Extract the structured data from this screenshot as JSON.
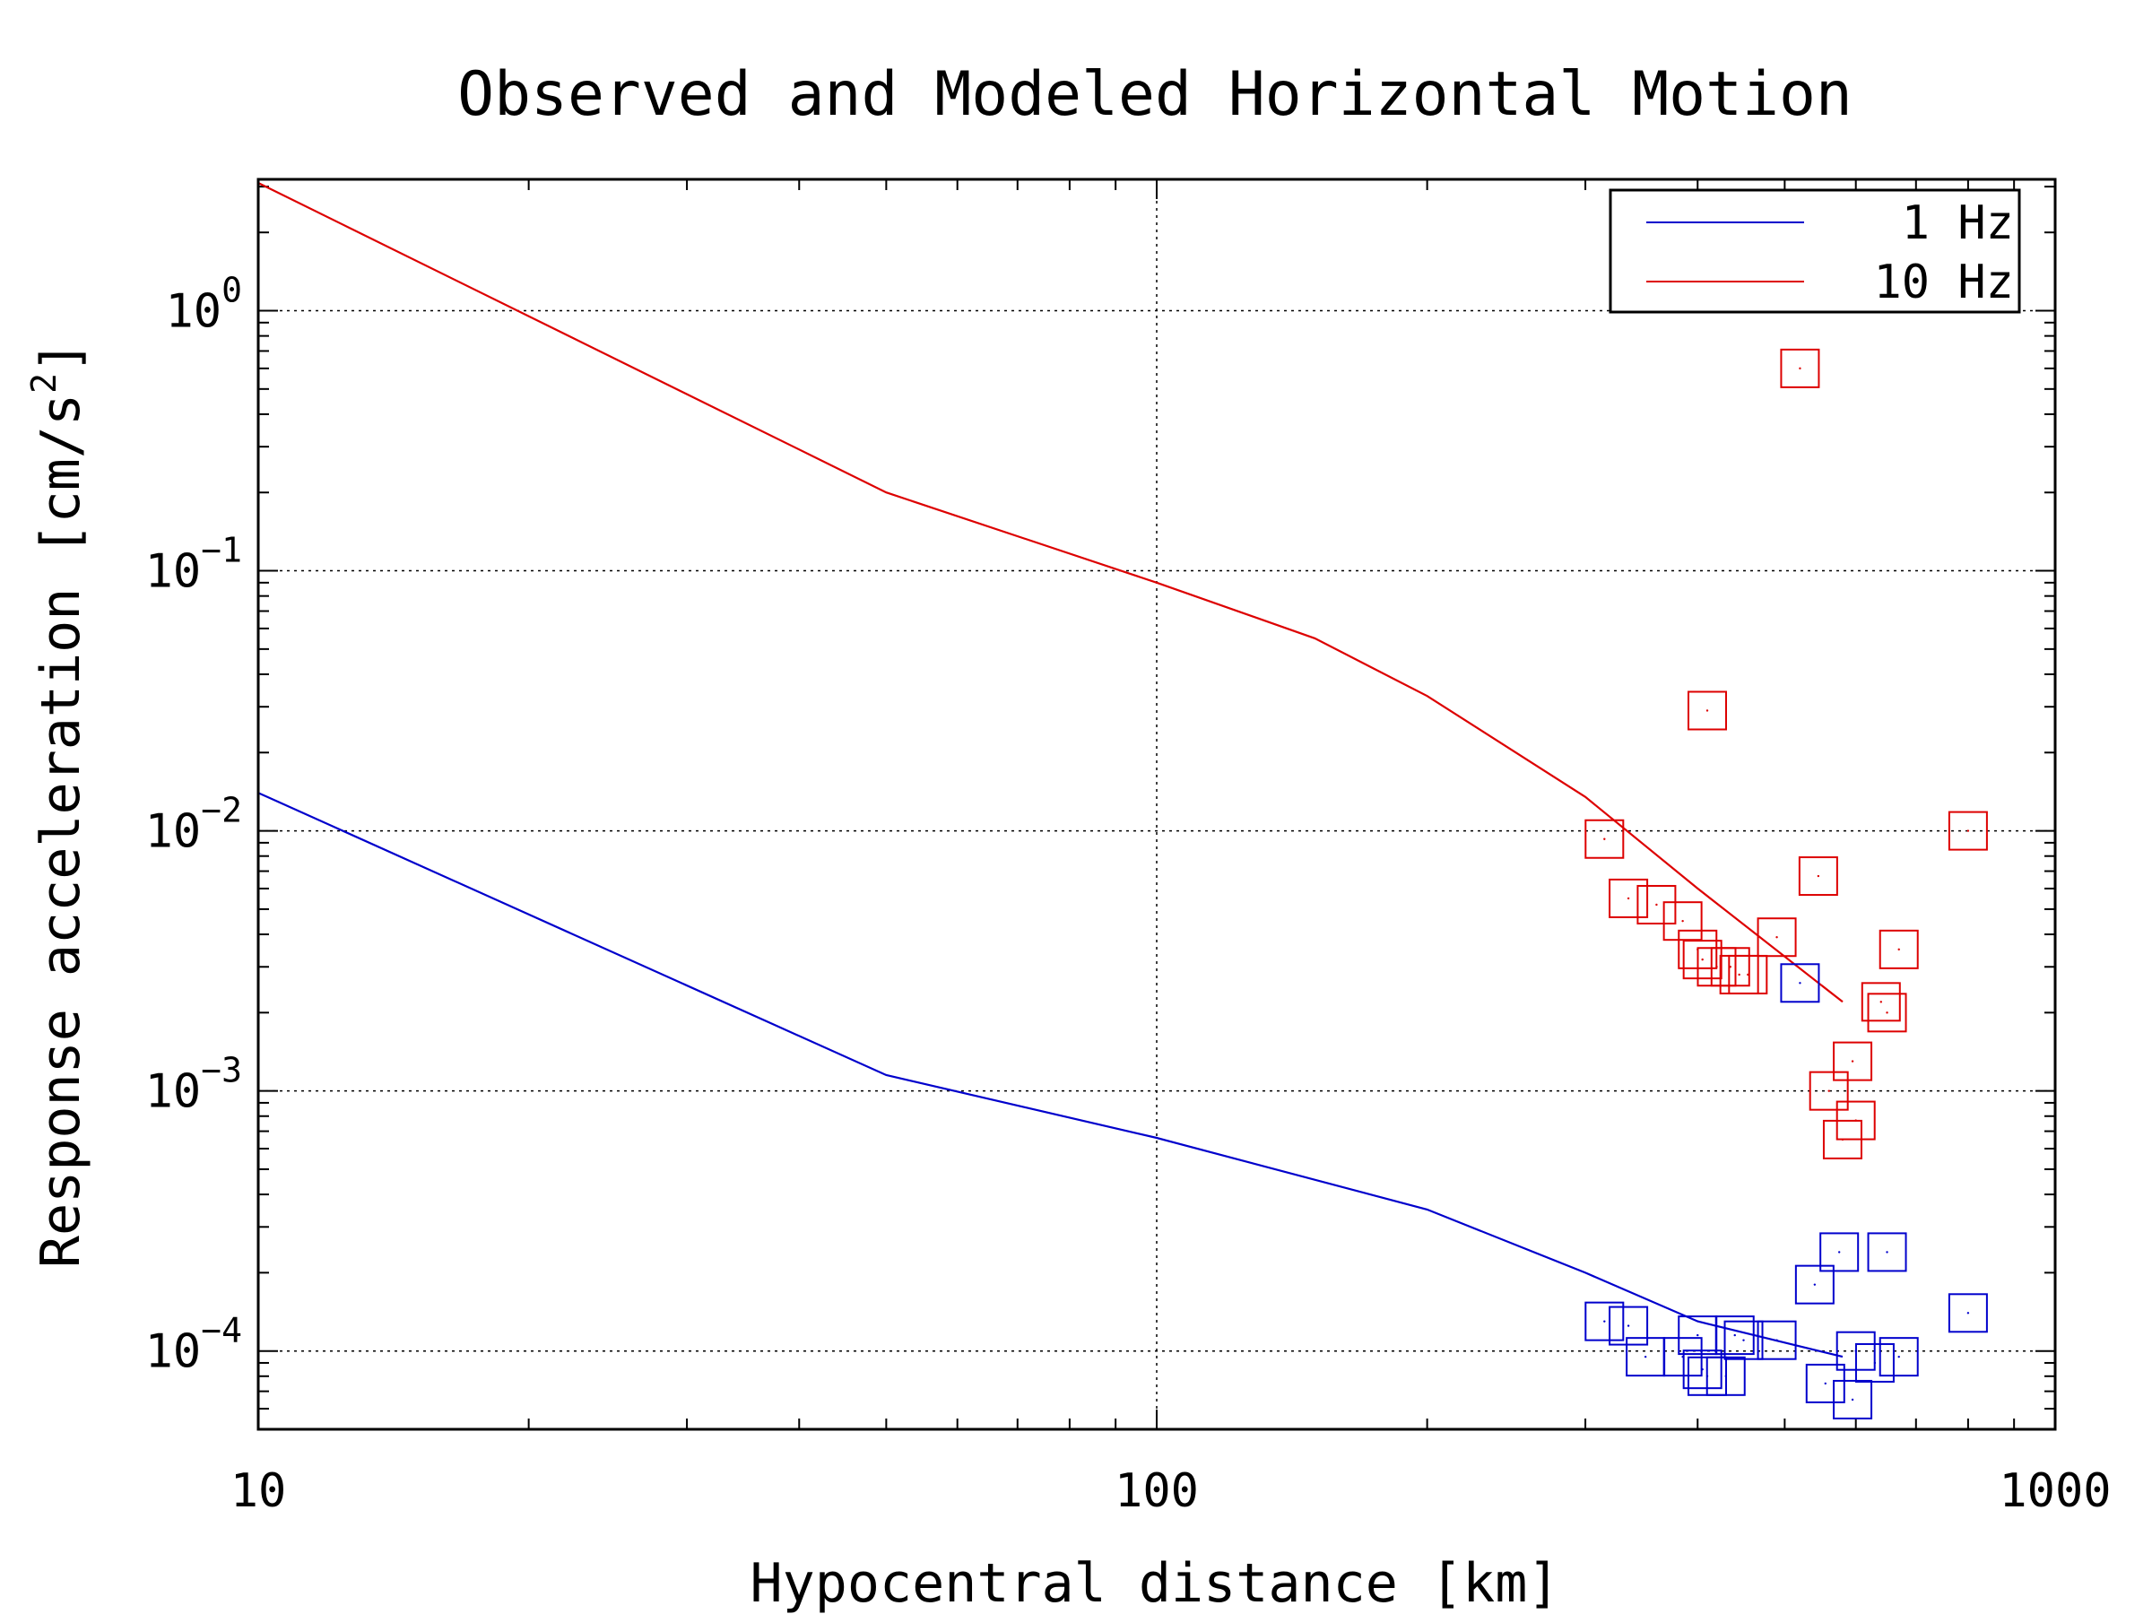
{
  "chart_data": {
    "type": "scatter",
    "title": "Observed and Modeled Horizontal Motion",
    "xlabel": "Hypocentral distance [km]",
    "ylabel": "Response acceleration [cm/s2]",
    "ylabel_main": "Response acceleration [cm/s",
    "ylabel_sup": "2",
    "ylabel_close": "]",
    "x_scale": "log",
    "y_scale": "log",
    "xlim": [
      10,
      1000
    ],
    "ylim": [
      5e-05,
      3.2
    ],
    "grid": "major, dotted",
    "legend_placement": "top-right",
    "x_ticks": [
      {
        "value": 10,
        "label": "10"
      },
      {
        "value": 100,
        "label": "100"
      },
      {
        "value": 1000,
        "label": "1000"
      }
    ],
    "y_ticks": [
      {
        "value": 1,
        "base": "10",
        "exp": "0"
      },
      {
        "value": 0.1,
        "base": "10",
        "exp": "−1"
      },
      {
        "value": 0.01,
        "base": "10",
        "exp": "−2"
      },
      {
        "value": 0.001,
        "base": "10",
        "exp": "−3"
      },
      {
        "value": 0.0001,
        "base": "10",
        "exp": "−4"
      }
    ],
    "series": [
      {
        "name": "1 Hz",
        "color": "#0000cc",
        "model_line": [
          [
            10,
            0.014
          ],
          [
            50,
            0.00115
          ],
          [
            100,
            0.00066
          ],
          [
            200,
            0.00035
          ],
          [
            300,
            0.0002
          ],
          [
            400,
            0.00013
          ],
          [
            580,
            9.5e-05
          ]
        ],
        "observations": [
          [
            315,
            0.00013
          ],
          [
            335,
            0.000125
          ],
          [
            350,
            9.5e-05
          ],
          [
            385,
            9.5e-05
          ],
          [
            400,
            0.000115
          ],
          [
            405,
            8.5e-05
          ],
          [
            410,
            8e-05
          ],
          [
            430,
            8e-05
          ],
          [
            440,
            0.000115
          ],
          [
            450,
            0.00011
          ],
          [
            490,
            0.00011
          ],
          [
            520,
            0.0026
          ],
          [
            540,
            0.00018
          ],
          [
            555,
            7.5e-05
          ],
          [
            575,
            0.00024
          ],
          [
            595,
            6.5e-05
          ],
          [
            600,
            0.0001
          ],
          [
            630,
            9e-05
          ],
          [
            650,
            0.00024
          ],
          [
            670,
            9.5e-05
          ],
          [
            800,
            0.00014
          ]
        ]
      },
      {
        "name": "10 Hz",
        "color": "#dd0000",
        "model_line": [
          [
            10,
            3.1
          ],
          [
            50,
            0.2
          ],
          [
            100,
            0.09
          ],
          [
            150,
            0.055
          ],
          [
            200,
            0.033
          ],
          [
            300,
            0.0135
          ],
          [
            400,
            0.006
          ],
          [
            580,
            0.0022
          ]
        ],
        "observations": [
          [
            315,
            0.0093
          ],
          [
            335,
            0.0055
          ],
          [
            360,
            0.0052
          ],
          [
            385,
            0.0045
          ],
          [
            400,
            0.0035
          ],
          [
            405,
            0.0032
          ],
          [
            410,
            0.029
          ],
          [
            420,
            0.003
          ],
          [
            435,
            0.003
          ],
          [
            445,
            0.0028
          ],
          [
            455,
            0.0028
          ],
          [
            490,
            0.0039
          ],
          [
            520,
            0.6
          ],
          [
            545,
            0.0067
          ],
          [
            560,
            0.001
          ],
          [
            580,
            0.00065
          ],
          [
            595,
            0.0013
          ],
          [
            600,
            0.00077
          ],
          [
            640,
            0.0022
          ],
          [
            650,
            0.002
          ],
          [
            670,
            0.0035
          ],
          [
            800,
            0.01
          ]
        ]
      }
    ],
    "legend": {
      "entries": [
        {
          "label": "1 Hz",
          "color": "#0000cc"
        },
        {
          "label": "10 Hz",
          "color": "#dd0000"
        }
      ]
    }
  }
}
